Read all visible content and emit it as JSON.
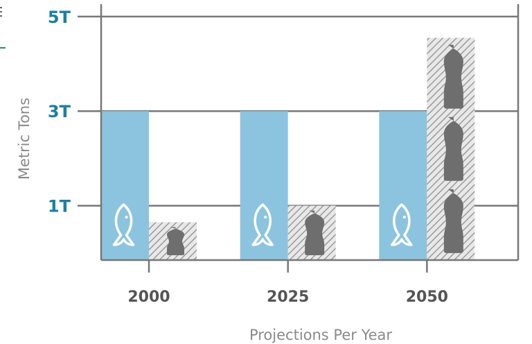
{
  "chart_data": {
    "type": "bar",
    "categories": [
      "2000",
      "2025",
      "2050"
    ],
    "series": [
      {
        "key": "fish",
        "values": [
          3.0,
          3.0,
          3.0
        ],
        "icon": "fish-icon",
        "color": "#8cc4df"
      },
      {
        "key": "plastic",
        "values": [
          0.65,
          1.0,
          4.55
        ],
        "icon": "plastic-bottle-icon",
        "color": "#e8e8e8",
        "hatch_color": "#9a9a9a"
      }
    ],
    "yticks": [
      {
        "value": 1,
        "label": "1T"
      },
      {
        "value": 3,
        "label": "3T"
      },
      {
        "value": 5,
        "label": "5T"
      }
    ],
    "ylim": [
      -0.15,
      5.35
    ],
    "xlabel": "Projections Per Year",
    "ylabel": "Metric Tons",
    "tick_color": "#1b7fa3",
    "axis_color": "#777777",
    "bottle_color": "#6e6e6e",
    "grid": true
  }
}
